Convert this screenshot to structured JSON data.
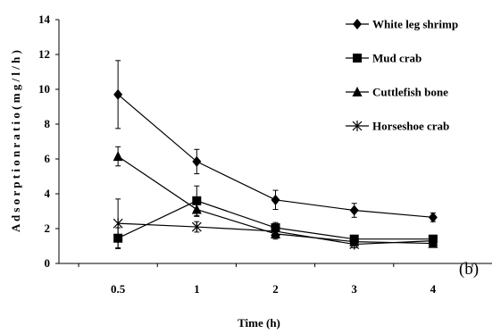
{
  "chart_data": {
    "type": "line",
    "categories": [
      "0.5",
      "1",
      "2",
      "3",
      "4"
    ],
    "xlabel": "Time (h)",
    "ylabel": "A d s o r p t i o n  r a t i o  ( m g / l / h )",
    "ylim": [
      0,
      14
    ],
    "yticks": [
      "0",
      "2",
      "4",
      "6",
      "8",
      "10",
      "12",
      "14"
    ],
    "grid": false,
    "legend_position": "right",
    "panel_label": "(b)",
    "series": [
      {
        "name": "White leg shrimp",
        "marker": "diamond",
        "values": [
          9.7,
          5.85,
          3.65,
          3.05,
          2.65
        ],
        "errors": [
          1.95,
          0.7,
          0.55,
          0.4,
          0.25
        ]
      },
      {
        "name": "Mud crab",
        "marker": "square",
        "values": [
          1.45,
          3.6,
          2.05,
          1.4,
          1.4
        ],
        "errors": [
          0.6,
          0.85,
          0.3,
          0.2,
          0.2
        ]
      },
      {
        "name": "Cuttlefish bone",
        "marker": "triangle",
        "values": [
          6.15,
          3.1,
          1.7,
          1.25,
          1.15
        ],
        "errors": [
          0.55,
          0.4,
          0.3,
          0.2,
          0.2
        ]
      },
      {
        "name": "Horseshoe crab",
        "marker": "x",
        "values": [
          2.3,
          2.1,
          1.85,
          1.1,
          1.3
        ],
        "errors": [
          1.4,
          0.3,
          0.3,
          0.2,
          0.2
        ]
      }
    ]
  }
}
